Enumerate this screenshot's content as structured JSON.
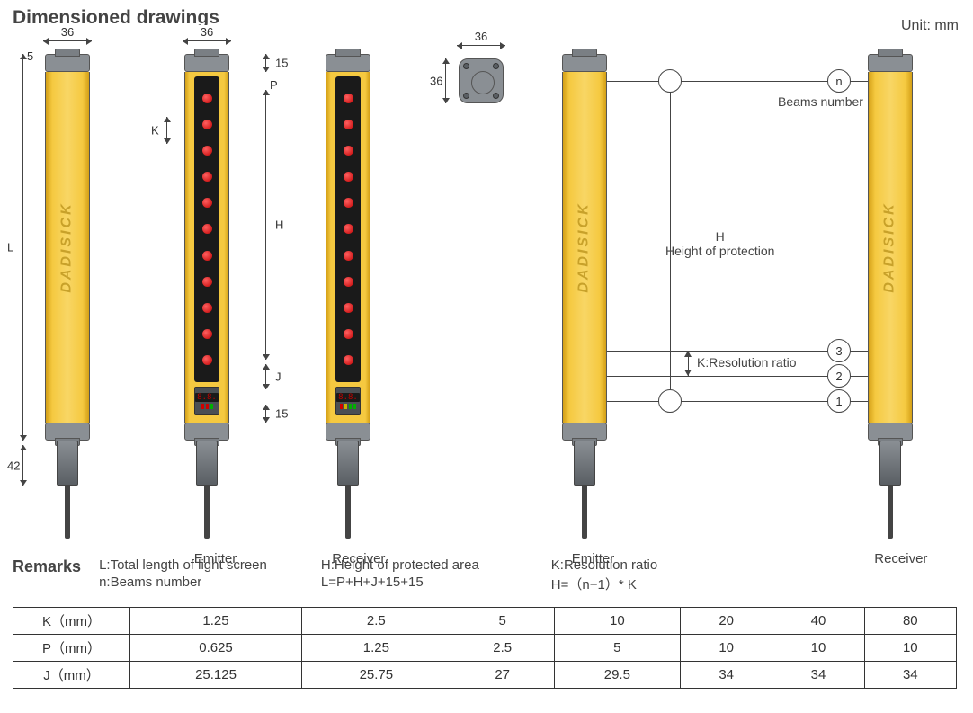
{
  "title": "Dimensioned drawings",
  "unit_label": "Unit: mm",
  "brand_text": "DADISICK",
  "labels": {
    "emitter": "Emitter",
    "receiver": "Receiver",
    "beams_number": "Beams number",
    "height_protection_h": "H",
    "height_protection_text": "Height of protection",
    "resolution_text": "K:Resolution ratio"
  },
  "dimensions": {
    "width_36": "36",
    "top_5": "5",
    "top_15": "15",
    "bottom_15": "15",
    "conn_42": "42",
    "L": "L",
    "K": "K",
    "H": "H",
    "P": "P",
    "J": "J"
  },
  "markers": {
    "n": "n",
    "m1": "1",
    "m2": "2",
    "m3": "3"
  },
  "digits": "8.8.",
  "led_count": 11,
  "colors": {
    "yellow": "#f5c940",
    "yellow_dark": "#d4a017",
    "grey": "#8a8f94",
    "grey_dark": "#5a5f64",
    "led_red": "#c00000",
    "ind_red": "#d00000",
    "ind_green": "#00b000",
    "ind_yellow": "#d0b000"
  },
  "remarks": {
    "label": "Remarks",
    "col1a": "L:Total length of light screen",
    "col1b": "n:Beams number",
    "col2a": "H:Height of protected area",
    "col2b": "L=P+H+J+15+15",
    "col3a": "K:Resolution ratio",
    "col3b": "H=（n−1）* K"
  },
  "table": {
    "rows": [
      {
        "label": "K（mm）",
        "cells": [
          "1.25",
          "2.5",
          "5",
          "10",
          "20",
          "40",
          "80"
        ]
      },
      {
        "label": "P（mm）",
        "cells": [
          "0.625",
          "1.25",
          "2.5",
          "5",
          "10",
          "10",
          "10"
        ]
      },
      {
        "label": "J（mm）",
        "cells": [
          "25.125",
          "25.75",
          "27",
          "29.5",
          "34",
          "34",
          "34"
        ]
      }
    ]
  }
}
